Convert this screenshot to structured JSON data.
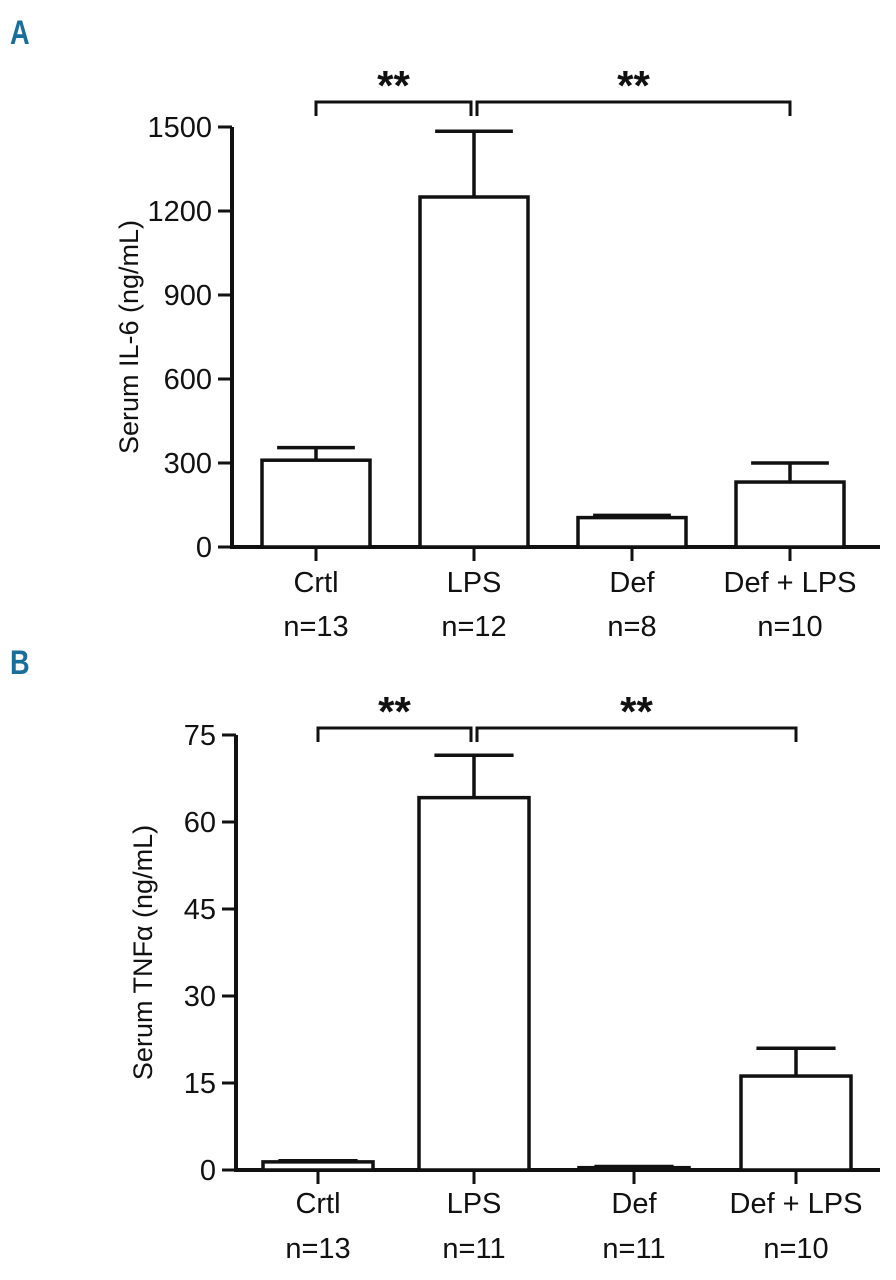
{
  "chart_data": [
    {
      "panel_label": "A",
      "type": "bar",
      "ylabel": "Serum IL-6 (ng/mL)",
      "ylim": [
        0,
        1500
      ],
      "yticks": [
        "0",
        "300",
        "600",
        "900",
        "1200",
        "1500"
      ],
      "categories": [
        "Crtl",
        "LPS",
        "Def",
        "Def + LPS"
      ],
      "n_labels": [
        "n=13",
        "n=12",
        "n=8",
        "n=10"
      ],
      "values": [
        310,
        1250,
        105,
        232
      ],
      "errors": [
        45,
        235,
        8,
        68
      ],
      "significance": [
        {
          "from": "Crtl",
          "to": "LPS",
          "label": "**"
        },
        {
          "from": "LPS",
          "to": "Def + LPS",
          "label": "**"
        }
      ],
      "bar_fill": "#ffffff",
      "stroke": "#111111"
    },
    {
      "panel_label": "B",
      "type": "bar",
      "ylabel": "Serum TNFα (ng/mL)",
      "ylim": [
        0,
        75
      ],
      "yticks": [
        "0",
        "15",
        "30",
        "45",
        "60",
        "75"
      ],
      "categories": [
        "Crtl",
        "LPS",
        "Def",
        "Def + LPS"
      ],
      "n_labels": [
        "n=13",
        "n=11",
        "n=11",
        "n=10"
      ],
      "values": [
        1.4,
        64.2,
        0.4,
        16.2
      ],
      "errors": [
        0.2,
        7.3,
        0.2,
        4.8
      ],
      "significance": [
        {
          "from": "Crtl",
          "to": "LPS",
          "label": "**"
        },
        {
          "from": "LPS",
          "to": "Def + LPS",
          "label": "**"
        }
      ],
      "bar_fill": "#ffffff",
      "stroke": "#111111"
    }
  ]
}
